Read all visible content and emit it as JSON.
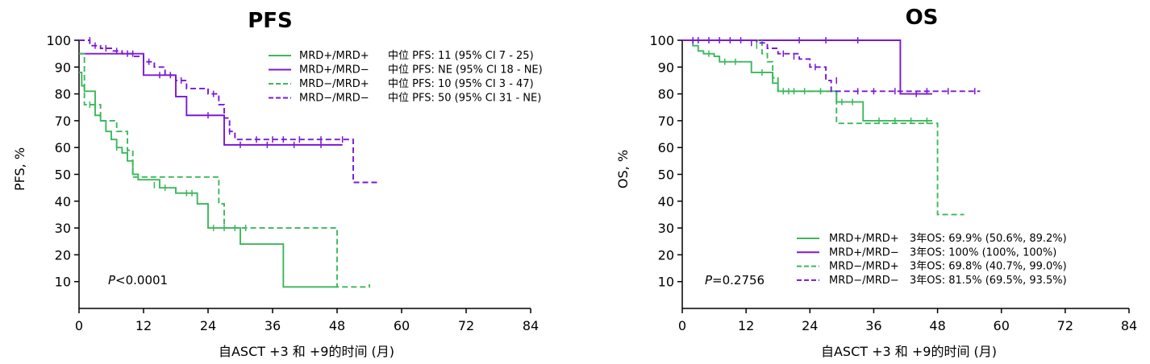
{
  "colors": {
    "green": "#3cb85c",
    "purple": "#7a18d6"
  },
  "chart_data": [
    {
      "type": "line",
      "subtype": "kaplan-meier",
      "title": "PFS",
      "xlabel": "自ASCT +3 和 +9的时间 (月)",
      "ylabel": "PFS, %",
      "xlim": [
        0,
        84
      ],
      "ylim": [
        0,
        100
      ],
      "xticks": [
        0,
        12,
        24,
        36,
        48,
        60,
        72,
        84
      ],
      "yticks": [
        10,
        20,
        30,
        40,
        50,
        60,
        70,
        80,
        90,
        100
      ],
      "pvalue_prefix": "P",
      "pvalue_rest": "<0.0001",
      "legend_position": "top-right",
      "series": [
        {
          "name": "MRD+/MRD+",
          "annotation": "中位 PFS: 11 (95% CI 7 - 25)",
          "color": "green",
          "dashed": false,
          "x": [
            0,
            0.5,
            1,
            3,
            3,
            4,
            5,
            6,
            7,
            8,
            9,
            10,
            11,
            15,
            18,
            22,
            24,
            25,
            30,
            38,
            48
          ],
          "y": [
            88,
            83,
            81,
            76,
            72,
            70,
            66,
            63,
            60,
            58,
            55,
            50,
            48,
            45,
            43,
            39,
            30,
            30,
            24,
            8,
            8
          ],
          "censors": [
            [
              3,
              76
            ],
            [
              7,
              60
            ],
            [
              9,
              58
            ],
            [
              14,
              46
            ],
            [
              16,
              45
            ],
            [
              20,
              43
            ],
            [
              21,
              43
            ],
            [
              25,
              30
            ],
            [
              29,
              30
            ]
          ]
        },
        {
          "name": "MRD+/MRD−",
          "annotation": "中位 PFS: NE (95% CI 18 - NE)",
          "color": "purple",
          "dashed": false,
          "x": [
            0,
            11,
            12,
            17,
            18,
            20,
            25,
            27,
            35,
            49
          ],
          "y": [
            95,
            95,
            87,
            87,
            79,
            72,
            72,
            61,
            61,
            61
          ],
          "censors": [
            [
              10,
              95
            ],
            [
              15,
              87
            ],
            [
              24,
              72
            ],
            [
              30,
              61
            ],
            [
              35,
              61
            ],
            [
              40,
              61
            ],
            [
              45,
              61
            ]
          ]
        },
        {
          "name": "MRD−/MRD+",
          "annotation": "中位 PFS: 10 (95% CI 3 - 47)",
          "color": "green",
          "dashed": false,
          "dash": true,
          "x": [
            0,
            1,
            3,
            4,
            6,
            7,
            9,
            10,
            10,
            11,
            25,
            26,
            27,
            47,
            48,
            54
          ],
          "y": [
            95,
            76,
            76,
            70,
            70,
            66,
            59,
            52,
            49,
            49,
            49,
            39,
            30,
            30,
            8,
            9
          ],
          "censors": [
            [
              2,
              76
            ],
            [
              27,
              30
            ],
            [
              31,
              30
            ]
          ]
        },
        {
          "name": "MRD−/MRD−",
          "annotation": "中位 PFS: 50 (95% CI 31 - NE)",
          "color": "purple",
          "dashed": true,
          "x": [
            0,
            2,
            4,
            6,
            8,
            10,
            12,
            14,
            16,
            18,
            20,
            24,
            26,
            27,
            28,
            29,
            31,
            50,
            51,
            56
          ],
          "y": [
            100,
            98,
            97,
            96,
            95,
            94,
            92,
            90,
            87,
            85,
            82,
            80,
            76,
            71,
            66,
            63,
            63,
            63,
            47,
            47
          ],
          "censors": [
            [
              2,
              100
            ],
            [
              3,
              98
            ],
            [
              5,
              97
            ],
            [
              7,
              96
            ],
            [
              9,
              95
            ],
            [
              13,
              92
            ],
            [
              17,
              87
            ],
            [
              19,
              85
            ],
            [
              25,
              80
            ],
            [
              28,
              66
            ],
            [
              33,
              63
            ],
            [
              36,
              63
            ],
            [
              38,
              63
            ],
            [
              41,
              63
            ],
            [
              45,
              63
            ],
            [
              49,
              63
            ]
          ]
        }
      ]
    },
    {
      "type": "line",
      "subtype": "kaplan-meier",
      "title": "OS",
      "xlabel": "自ASCT +3 和 +9的时间 (月)",
      "ylabel": "OS, %",
      "xlim": [
        0,
        84
      ],
      "ylim": [
        0,
        100
      ],
      "xticks": [
        0,
        12,
        24,
        36,
        48,
        60,
        72,
        84
      ],
      "yticks": [
        10,
        20,
        30,
        40,
        50,
        60,
        70,
        80,
        90,
        100
      ],
      "pvalue_prefix": "P",
      "pvalue_rest": "=0.2756",
      "legend_position": "bottom-right",
      "series": [
        {
          "name": "MRD+/MRD+",
          "annotation": "3年OS: 69.9% (50.6%, 89.2%)",
          "color": "green",
          "dashed": false,
          "x": [
            0,
            2,
            3,
            4,
            6,
            7,
            12,
            13,
            16,
            17,
            18,
            28,
            29,
            33,
            34,
            47
          ],
          "y": [
            100,
            98,
            96,
            95,
            94,
            92,
            92,
            88,
            88,
            84,
            81,
            81,
            77,
            77,
            70,
            70
          ],
          "censors": [
            [
              5,
              95
            ],
            [
              8,
              92
            ],
            [
              10,
              92
            ],
            [
              15,
              88
            ],
            [
              19,
              81
            ],
            [
              21,
              81
            ],
            [
              23,
              81
            ],
            [
              26,
              81
            ],
            [
              30,
              77
            ],
            [
              32,
              77
            ],
            [
              37,
              70
            ],
            [
              40,
              70
            ],
            [
              43,
              70
            ],
            [
              46,
              70
            ]
          ]
        },
        {
          "name": "MRD+/MRD−",
          "annotation": "3年OS: 100% (100%, 100%)",
          "color": "purple",
          "dashed": false,
          "x": [
            0,
            40,
            41,
            47
          ],
          "y": [
            100,
            100,
            80,
            80
          ],
          "censors": [
            [
              22,
              100
            ],
            [
              27,
              100
            ],
            [
              33,
              100
            ],
            [
              44,
              80
            ]
          ]
        },
        {
          "name": "MRD−/MRD+",
          "annotation": "3年OS: 69.8% (40.7%, 99.0%)",
          "color": "green",
          "dashed": false,
          "dash": true,
          "x": [
            0,
            14,
            15,
            16,
            17,
            18,
            28,
            29,
            47,
            48,
            53
          ],
          "y": [
            100,
            100,
            95,
            92,
            86,
            81,
            81,
            69,
            69,
            35,
            35
          ],
          "censors": [
            [
              14,
              98
            ],
            [
              20,
              81
            ]
          ]
        },
        {
          "name": "MRD−/MRD−",
          "annotation": "3年OS: 81.5% (69.5%, 93.5%)",
          "color": "purple",
          "dashed": true,
          "x": [
            0,
            14,
            16,
            18,
            22,
            24,
            27,
            28,
            30,
            56
          ],
          "y": [
            100,
            99,
            97,
            95,
            93,
            90,
            85,
            81,
            81,
            81
          ],
          "censors": [
            [
              2,
              100
            ],
            [
              3,
              100
            ],
            [
              5,
              100
            ],
            [
              7,
              100
            ],
            [
              9,
              100
            ],
            [
              11,
              100
            ],
            [
              13,
              99
            ],
            [
              19,
              95
            ],
            [
              21,
              94
            ],
            [
              25,
              90
            ],
            [
              29,
              85
            ],
            [
              33,
              81
            ],
            [
              36,
              81
            ],
            [
              40,
              81
            ],
            [
              46,
              81
            ],
            [
              50,
              81
            ],
            [
              55,
              81
            ]
          ]
        }
      ]
    }
  ]
}
